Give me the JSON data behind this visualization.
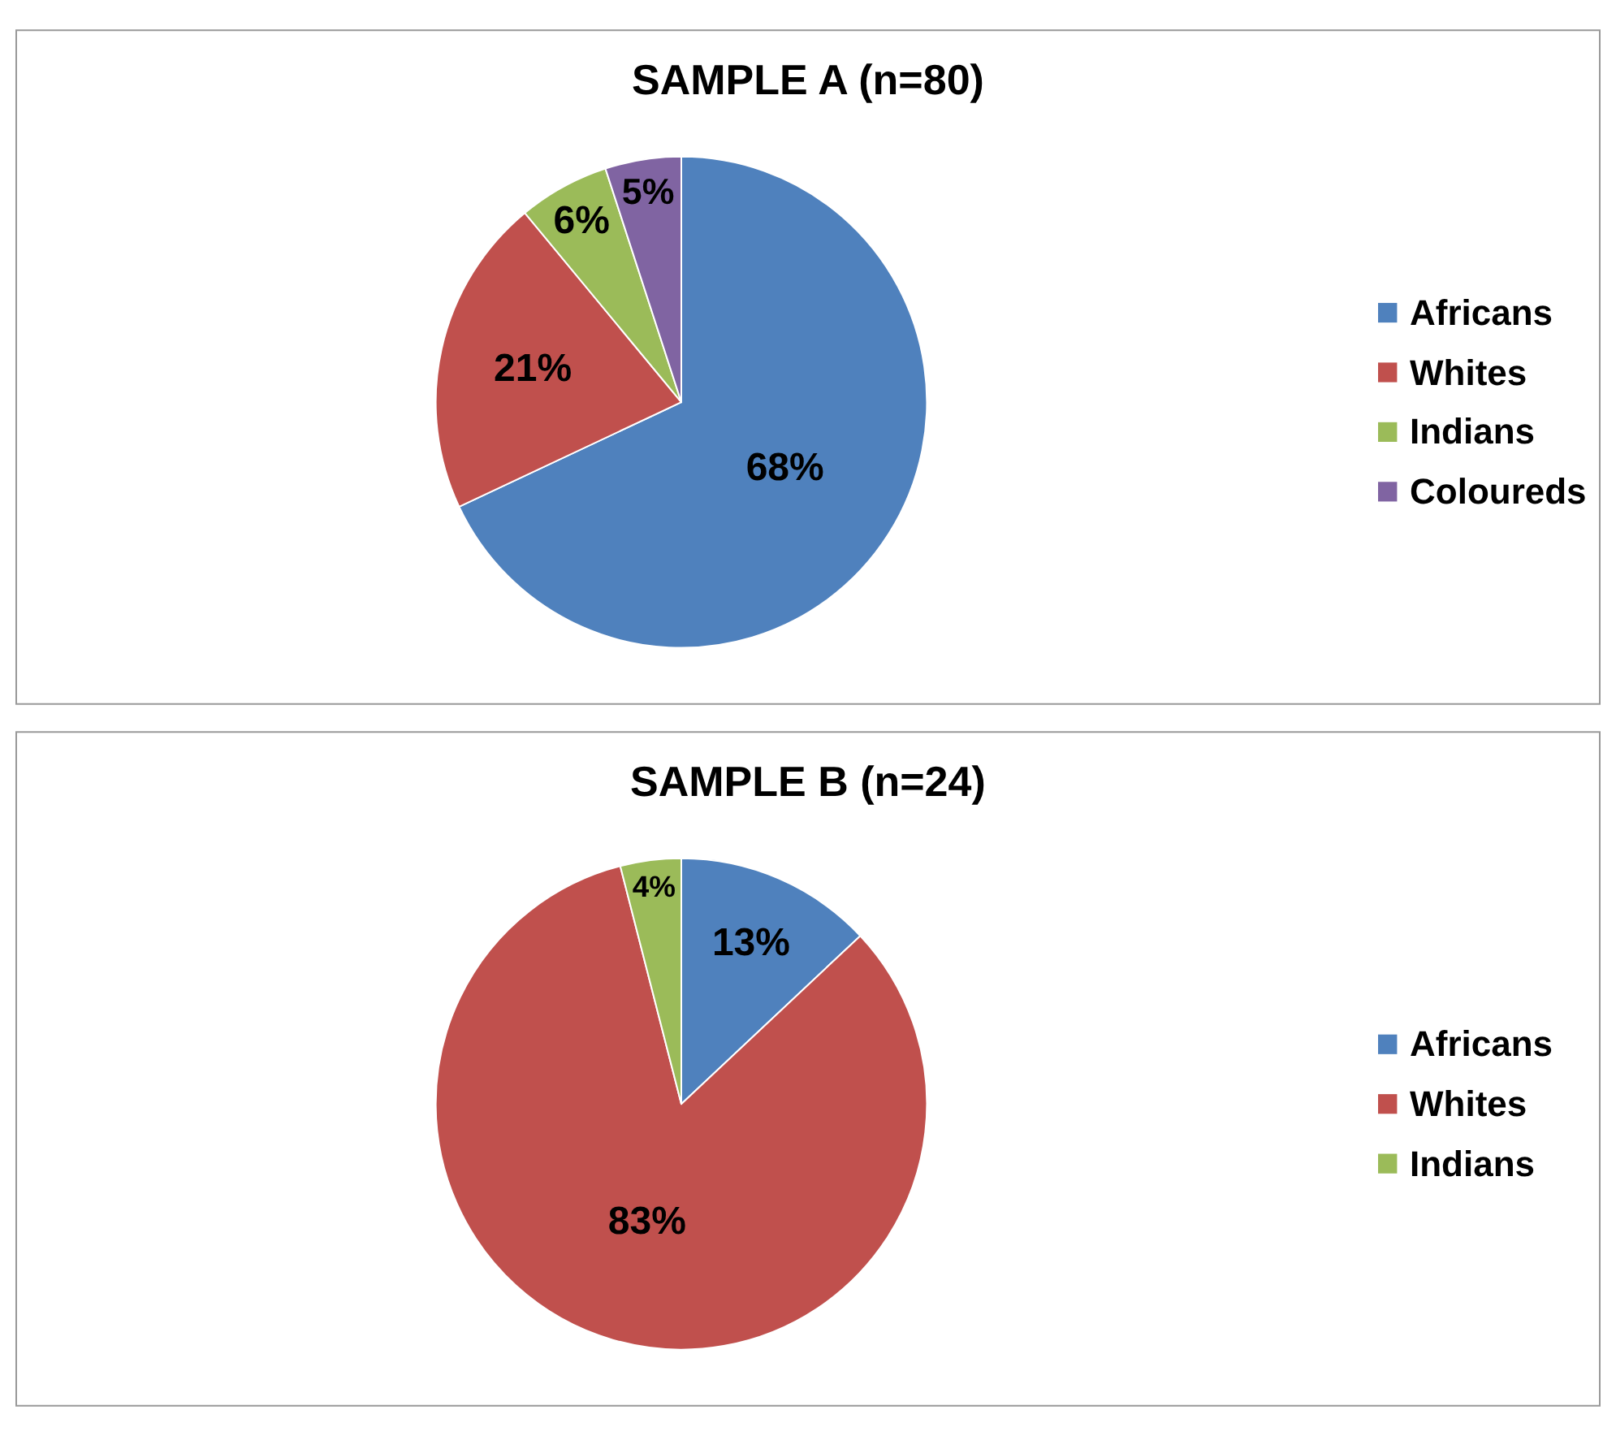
{
  "chart_data": [
    {
      "type": "pie",
      "title": "SAMPLE A (n=80)",
      "categories": [
        "Africans",
        "Whites",
        "Indians",
        "Coloureds"
      ],
      "values": [
        68,
        21,
        6,
        5
      ],
      "colors": [
        "#4f81bd",
        "#c0504d",
        "#9bbb59",
        "#8064a2"
      ],
      "value_labels": [
        "68%",
        "21%",
        "6%",
        "5%"
      ],
      "legend": "right"
    },
    {
      "type": "pie",
      "title": "SAMPLE B (n=24)",
      "categories": [
        "Africans",
        "Whites",
        "Indians"
      ],
      "values": [
        13,
        83,
        4
      ],
      "colors": [
        "#4f81bd",
        "#c0504d",
        "#9bbb59"
      ],
      "value_labels": [
        "13%",
        "83%",
        "4%"
      ],
      "legend": "right"
    }
  ]
}
